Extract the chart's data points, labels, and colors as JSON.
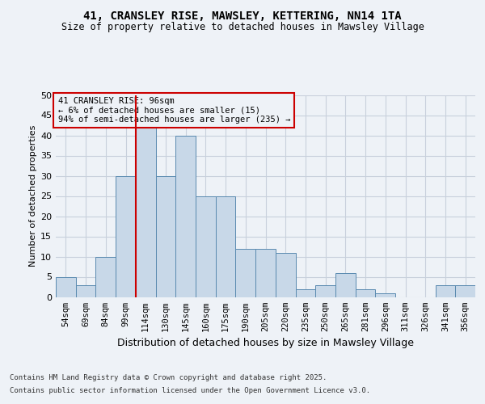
{
  "title1": "41, CRANSLEY RISE, MAWSLEY, KETTERING, NN14 1TA",
  "title2": "Size of property relative to detached houses in Mawsley Village",
  "xlabel": "Distribution of detached houses by size in Mawsley Village",
  "ylabel": "Number of detached properties",
  "footnote1": "Contains HM Land Registry data © Crown copyright and database right 2025.",
  "footnote2": "Contains public sector information licensed under the Open Government Licence v3.0.",
  "annotation_line1": "41 CRANSLEY RISE: 96sqm",
  "annotation_line2": "← 6% of detached houses are smaller (15)",
  "annotation_line3": "94% of semi-detached houses are larger (235) →",
  "bar_labels": [
    "54sqm",
    "69sqm",
    "84sqm",
    "99sqm",
    "114sqm",
    "130sqm",
    "145sqm",
    "160sqm",
    "175sqm",
    "190sqm",
    "205sqm",
    "220sqm",
    "235sqm",
    "250sqm",
    "265sqm",
    "281sqm",
    "296sqm",
    "311sqm",
    "326sqm",
    "341sqm",
    "356sqm"
  ],
  "bar_values": [
    5,
    3,
    10,
    30,
    42,
    30,
    40,
    25,
    25,
    12,
    12,
    11,
    2,
    3,
    6,
    2,
    1,
    0,
    0,
    3,
    3
  ],
  "bar_color": "#c8d8e8",
  "bar_edge_color": "#5a8ab0",
  "vline_x": 3.5,
  "vline_color": "#cc0000",
  "annotation_box_color": "#cc0000",
  "ylim": [
    0,
    50
  ],
  "yticks": [
    0,
    5,
    10,
    15,
    20,
    25,
    30,
    35,
    40,
    45,
    50
  ],
  "bg_color": "#eef2f7",
  "grid_color": "#c8d0dc"
}
